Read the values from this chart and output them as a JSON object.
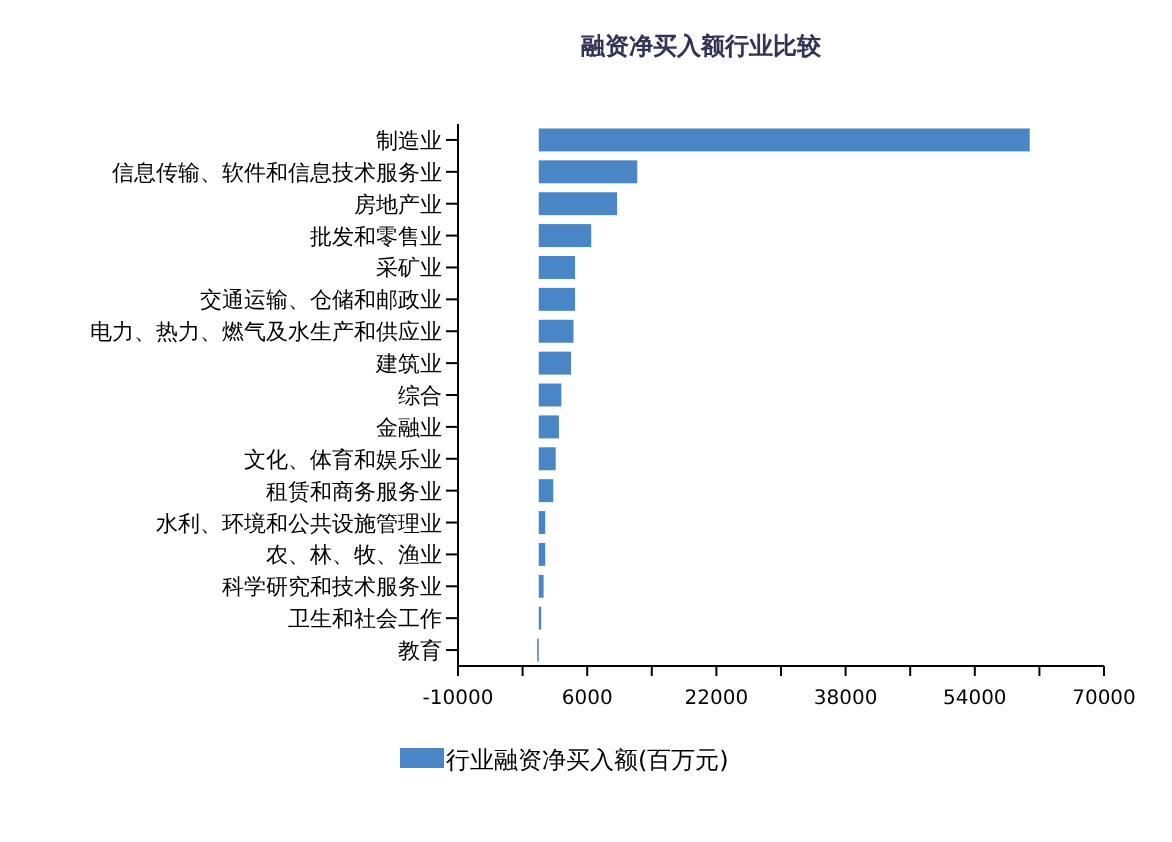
{
  "chart_data": {
    "type": "bar",
    "orientation": "horizontal",
    "title": "融资净买入额行业比较",
    "categories": [
      "制造业",
      "信息传输、软件和信息技术服务业",
      "房地产业",
      "批发和零售业",
      "采矿业",
      "交通运输、仓储和邮政业",
      "电力、热力、燃气及水生产和供应业",
      "建筑业",
      "综合",
      "金融业",
      "文化、体育和娱乐业",
      "租赁和商务服务业",
      "水利、环境和公共设施管理业",
      "农、林、牧、渔业",
      "科学研究和技术服务业",
      "卫生和社会工作",
      "教育"
    ],
    "series": [
      {
        "name": "行业融资净买入额(百万元)",
        "color": "#4a86c5",
        "values": [
          60800,
          12200,
          9700,
          6500,
          4500,
          4500,
          4300,
          4000,
          2800,
          2500,
          2100,
          1800,
          800,
          800,
          600,
          300,
          -200
        ]
      }
    ],
    "xlim": [
      -10000,
      70000
    ],
    "xticks": [
      -10000,
      {
        "value": -2000,
        "label": null
      },
      6000,
      {
        "value": 14000,
        "label": null
      },
      22000,
      {
        "value": 30000,
        "label": null
      },
      38000,
      {
        "value": 46000,
        "label": null
      },
      54000,
      {
        "value": 62000,
        "label": null
      },
      70000
    ],
    "grid": false,
    "legend": "bottom"
  }
}
